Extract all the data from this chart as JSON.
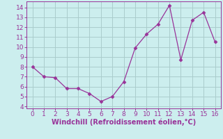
{
  "x": [
    0,
    1,
    2,
    3,
    4,
    5,
    6,
    7,
    8,
    9,
    10,
    11,
    12,
    13,
    14,
    15,
    16
  ],
  "y": [
    8.0,
    7.0,
    6.9,
    5.8,
    5.8,
    5.3,
    4.5,
    5.0,
    6.5,
    9.9,
    11.3,
    12.3,
    14.2,
    8.7,
    12.7,
    13.5,
    10.5
  ],
  "line_color": "#993399",
  "marker": "D",
  "marker_size": 2.5,
  "bg_color": "#cceeee",
  "grid_color": "#aacccc",
  "xlabel": "Windchill (Refroidissement éolien,°C)",
  "xlabel_color": "#993399",
  "tick_color": "#993399",
  "spine_color": "#993399",
  "xlim": [
    -0.5,
    16.5
  ],
  "ylim": [
    3.8,
    14.6
  ],
  "yticks": [
    4,
    5,
    6,
    7,
    8,
    9,
    10,
    11,
    12,
    13,
    14
  ],
  "xticks": [
    0,
    1,
    2,
    3,
    4,
    5,
    6,
    7,
    8,
    9,
    10,
    11,
    12,
    13,
    14,
    15,
    16
  ],
  "tick_fontsize": 6.5,
  "xlabel_fontsize": 7.0
}
